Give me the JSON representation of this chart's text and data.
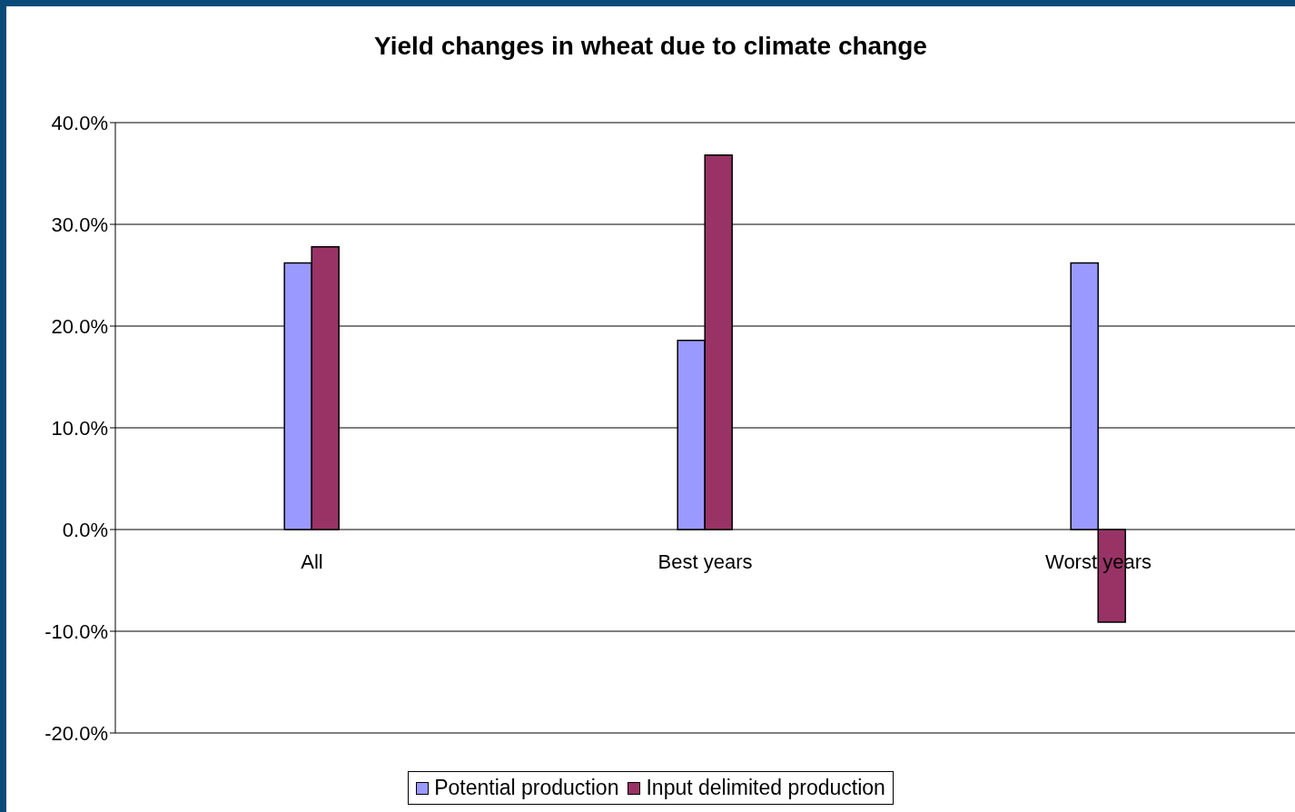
{
  "chart_data": {
    "type": "bar",
    "title": "Yield changes in wheat due to climate change",
    "categories": [
      "All",
      "Best years",
      "Worst years"
    ],
    "series": [
      {
        "name": "Potential production",
        "color": "#9999ff",
        "values": [
          26.2,
          18.6,
          26.2
        ]
      },
      {
        "name": "Input delimited production",
        "color": "#993366",
        "values": [
          27.8,
          36.8,
          -9.1
        ]
      }
    ],
    "ylim": [
      -20,
      40
    ],
    "yticks": [
      {
        "value": -20,
        "label": "-20.0%"
      },
      {
        "value": -10,
        "label": "-10.0%"
      },
      {
        "value": 0,
        "label": "0.0%"
      },
      {
        "value": 10,
        "label": "10.0%"
      },
      {
        "value": 20,
        "label": "20.0%"
      },
      {
        "value": 30,
        "label": "30.0%"
      },
      {
        "value": 40,
        "label": "40.0%"
      }
    ],
    "grid": "y",
    "legend": "bottom"
  }
}
